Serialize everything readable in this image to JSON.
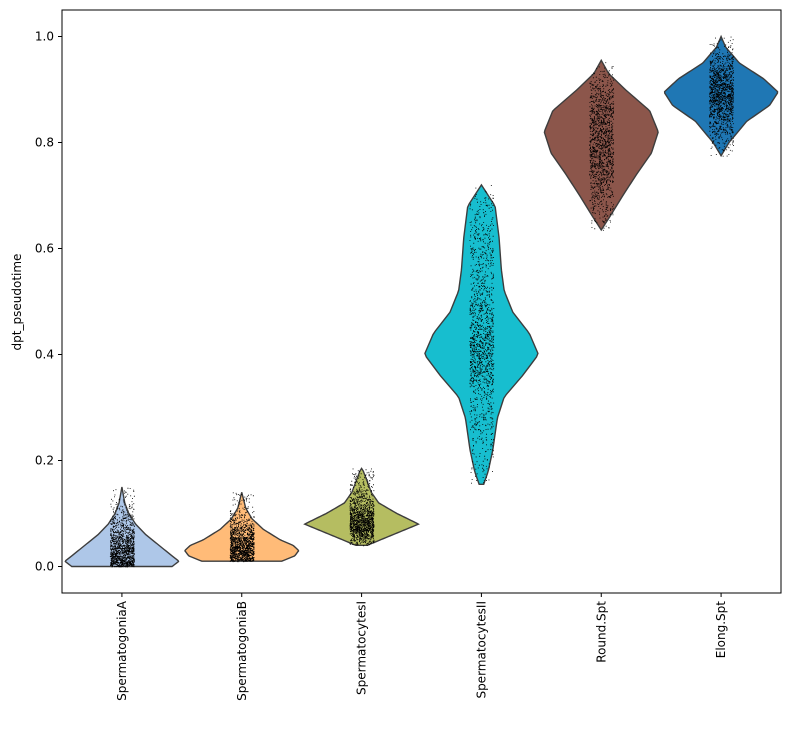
{
  "chart_data": {
    "type": "violin",
    "title": "",
    "xlabel": "",
    "ylabel": "dpt_pseudotime",
    "ylim": [
      -0.05,
      1.05
    ],
    "yticks": [
      0.0,
      0.2,
      0.4,
      0.6,
      0.8,
      1.0
    ],
    "ytick_labels": [
      "0.0",
      "0.2",
      "0.4",
      "0.6",
      "0.8",
      "1.0"
    ],
    "grid": false,
    "legend": "none",
    "categories": [
      "SpermatogoniaA",
      "SpermatogoniaB",
      "SpermatocytesI",
      "SpermatocytesII",
      "Round.Spt",
      "Elong.Spt"
    ],
    "series": [
      {
        "category": "SpermatogoniaA",
        "color": "#aec7e8",
        "min": 0.0,
        "max": 0.15,
        "density": [
          [
            0.0,
            0.88
          ],
          [
            0.01,
            1.0
          ],
          [
            0.02,
            0.88
          ],
          [
            0.04,
            0.65
          ],
          [
            0.06,
            0.42
          ],
          [
            0.08,
            0.24
          ],
          [
            0.1,
            0.12
          ],
          [
            0.12,
            0.05
          ],
          [
            0.15,
            0.0
          ]
        ]
      },
      {
        "category": "SpermatogoniaB",
        "color": "#ffbb78",
        "min": 0.01,
        "max": 0.14,
        "density": [
          [
            0.01,
            0.7
          ],
          [
            0.02,
            0.93
          ],
          [
            0.03,
            1.0
          ],
          [
            0.04,
            0.9
          ],
          [
            0.05,
            0.68
          ],
          [
            0.07,
            0.38
          ],
          [
            0.09,
            0.18
          ],
          [
            0.11,
            0.07
          ],
          [
            0.14,
            0.0
          ]
        ]
      },
      {
        "category": "SpermatocytesI",
        "color": "#b5bd61",
        "min": 0.04,
        "max": 0.185,
        "density": [
          [
            0.04,
            0.1
          ],
          [
            0.06,
            0.55
          ],
          [
            0.08,
            1.0
          ],
          [
            0.1,
            0.62
          ],
          [
            0.12,
            0.3
          ],
          [
            0.14,
            0.17
          ],
          [
            0.16,
            0.1
          ],
          [
            0.18,
            0.03
          ],
          [
            0.185,
            0.0
          ]
        ]
      },
      {
        "category": "SpermatocytesII",
        "color": "#17becf",
        "min": 0.155,
        "max": 0.72,
        "density": [
          [
            0.155,
            0.04
          ],
          [
            0.18,
            0.12
          ],
          [
            0.22,
            0.2
          ],
          [
            0.28,
            0.28
          ],
          [
            0.32,
            0.4
          ],
          [
            0.36,
            0.72
          ],
          [
            0.4,
            1.0
          ],
          [
            0.44,
            0.84
          ],
          [
            0.48,
            0.55
          ],
          [
            0.52,
            0.4
          ],
          [
            0.56,
            0.35
          ],
          [
            0.62,
            0.31
          ],
          [
            0.68,
            0.24
          ],
          [
            0.72,
            0.0
          ]
        ]
      },
      {
        "category": "Round.Spt",
        "color": "#8c564b",
        "min": 0.635,
        "max": 0.955,
        "density": [
          [
            0.635,
            0.0
          ],
          [
            0.66,
            0.15
          ],
          [
            0.7,
            0.38
          ],
          [
            0.74,
            0.62
          ],
          [
            0.78,
            0.88
          ],
          [
            0.82,
            1.0
          ],
          [
            0.86,
            0.85
          ],
          [
            0.9,
            0.42
          ],
          [
            0.93,
            0.13
          ],
          [
            0.955,
            0.0
          ]
        ]
      },
      {
        "category": "Elong.Spt",
        "color": "#1f77b4",
        "min": 0.775,
        "max": 1.0,
        "density": [
          [
            0.775,
            0.0
          ],
          [
            0.8,
            0.14
          ],
          [
            0.84,
            0.45
          ],
          [
            0.87,
            0.85
          ],
          [
            0.895,
            1.0
          ],
          [
            0.92,
            0.75
          ],
          [
            0.95,
            0.32
          ],
          [
            0.98,
            0.08
          ],
          [
            1.0,
            0.0
          ]
        ]
      }
    ]
  }
}
